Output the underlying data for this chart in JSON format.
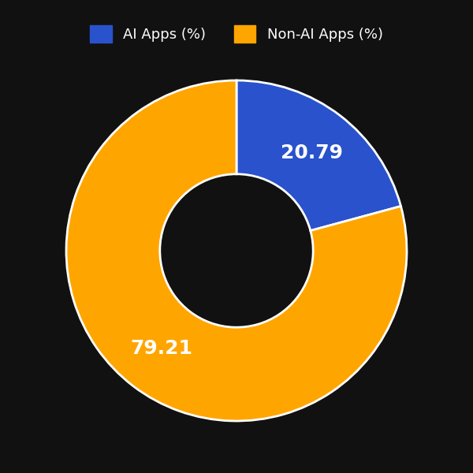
{
  "labels": [
    "AI Apps (%)",
    "Non-AI Apps (%)"
  ],
  "values": [
    20.79,
    79.21
  ],
  "colors": [
    "#2952CC",
    "#FFA500"
  ],
  "autopct_values": [
    "20.79",
    "79.21"
  ],
  "background_color": "#111111",
  "text_color": "#ffffff",
  "donut_width": 0.55,
  "legend_fontsize": 13,
  "autopct_fontsize": 18,
  "startangle": 90,
  "edgecolor": "#ffffff",
  "edgewidth": 2
}
